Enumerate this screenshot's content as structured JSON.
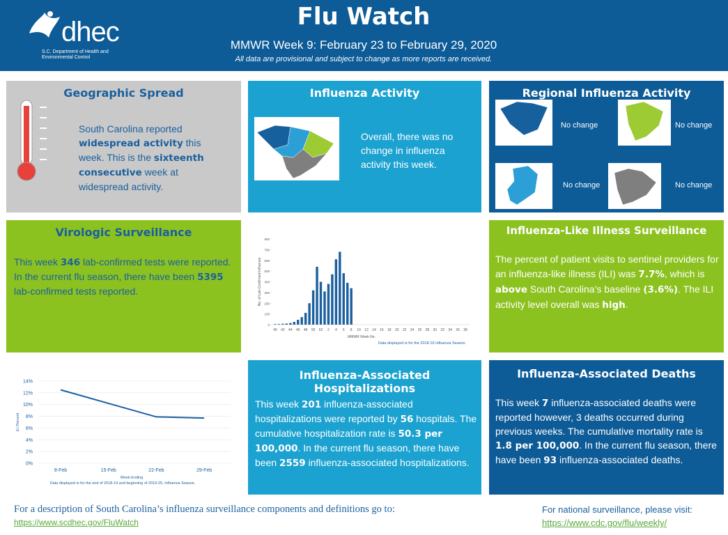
{
  "header": {
    "logo": "dhec",
    "logo_subtitle": "S.C. Department of Health and Environmental Control",
    "title": "Flu Watch",
    "subtitle": "MMWR Week 9: February 23 to February 29, 2020",
    "note": "All data are provisional and subject to change as more reports are received."
  },
  "geographic_spread": {
    "title": "Geographic Spread",
    "text": [
      {
        "text": "South Carolina reported "
      },
      {
        "text": "widespread activity",
        "bold": true
      },
      {
        "text": " this week. This is the "
      },
      {
        "text": "sixteenth consecutive",
        "bold": true
      },
      {
        "text": " week at widespread activity."
      }
    ]
  },
  "influenza_activity": {
    "title": "Influenza Activity",
    "text": [
      {
        "text": "Overall, there was no change in influenza activity this week."
      }
    ]
  },
  "regional_activity": {
    "title": "Regional Influenza Activity",
    "regions": [
      {
        "status": "No change",
        "color": "#17609e"
      },
      {
        "status": "No change",
        "color": "#9ccb34"
      },
      {
        "status": "No change",
        "color": "#2b9fd6"
      },
      {
        "status": "No change",
        "color": "#7f7f7f"
      }
    ]
  },
  "virologic_surveillance": {
    "title": "Virologic Surveillance",
    "text": [
      {
        "text": "This week "
      },
      {
        "text": "346",
        "bold": true
      },
      {
        "text": " lab-confirmed tests were reported.  In the current flu season, there have been "
      },
      {
        "text": "5395",
        "bold": true
      },
      {
        "text": " lab-confirmed tests reported."
      }
    ]
  },
  "ili_surveillance": {
    "title": "Influenza-Like Illness Surveillance",
    "text": [
      {
        "text": "The percent of patient visits to sentinel providers for an influenza-like illness (ILI) was "
      },
      {
        "text": "7.7%",
        "bold": true
      },
      {
        "text": ", which is "
      },
      {
        "text": "above",
        "bold": true
      },
      {
        "text": " South Carolina’s baseline "
      },
      {
        "text": "(3.6%)",
        "bold": true
      },
      {
        "text": ". The ILI activity level overall was "
      },
      {
        "text": "high",
        "bold": true
      },
      {
        "text": "."
      }
    ]
  },
  "hospitalizations": {
    "title": "Influenza-Associated Hospitalizations",
    "text": [
      {
        "text": "This week "
      },
      {
        "text": "201",
        "bold": true
      },
      {
        "text": " influenza-associated hospitalizations were reported by "
      },
      {
        "text": "56",
        "bold": true
      },
      {
        "text": " hospitals. The cumulative hospitalization rate is "
      },
      {
        "text": "50.3 per 100,000",
        "bold": true
      },
      {
        "text": ". In the current flu season, there have been "
      },
      {
        "text": "2559",
        "bold": true
      },
      {
        "text": " influenza-associated hospitalizations."
      }
    ]
  },
  "deaths": {
    "title": "Influenza-Associated Deaths",
    "text": [
      {
        "text": "This week "
      },
      {
        "text": "7",
        "bold": true
      },
      {
        "text": " influenza-associated deaths were reported however, 3 deaths occurred during previous weeks. The cumulative mortality rate is "
      },
      {
        "text": "1.8 per 100,000",
        "bold": true
      },
      {
        "text": ". In the current flu season, there have been "
      },
      {
        "text": "93",
        "bold": true
      },
      {
        "text": " influenza-associated deaths."
      }
    ]
  },
  "footer": {
    "left_text": "For a description of South Carolina’s influenza surveillance components and definitions go to: ",
    "left_link": "https://www.scdhec.gov/FluWatch",
    "right_text": "For national surveillance, please visit:",
    "right_link": "https://www.cdc.gov/flu/weekly/"
  },
  "chart_data": [
    {
      "type": "bar",
      "ylabel": "No. of Lab-Confirmed Influenza",
      "xlabel": "MMWR Week No.",
      "note": "Data displayed is for the 2018-19 Influenza Season.",
      "color": "#1a5f9e",
      "categories": [
        "40",
        null,
        "42",
        null,
        "44",
        null,
        "46",
        null,
        "48",
        null,
        "50",
        null,
        "52",
        null,
        "2",
        null,
        "4",
        null,
        "6",
        null,
        "8",
        null,
        "10",
        null,
        "12",
        null,
        "14",
        null,
        "16",
        null,
        "18",
        null,
        "20",
        null,
        "22",
        null,
        "24",
        null,
        "26",
        null,
        "28",
        null,
        "30",
        null,
        "32",
        null,
        "34",
        null,
        "36",
        null,
        "38"
      ],
      "values": [
        5,
        5,
        8,
        10,
        15,
        25,
        45,
        70,
        110,
        200,
        320,
        540,
        400,
        310,
        380,
        470,
        610,
        680,
        480,
        390,
        340,
        null,
        null,
        null,
        null,
        null,
        null,
        null,
        null,
        null,
        null,
        null,
        null,
        null,
        null,
        null,
        null,
        null,
        null,
        null,
        null,
        null,
        null,
        null,
        null,
        null,
        null,
        null,
        null,
        null,
        null
      ],
      "ylim": [
        0,
        800
      ],
      "yticks": [
        0,
        100,
        200,
        300,
        400,
        500,
        600,
        700,
        800
      ],
      "grid": false
    },
    {
      "type": "line",
      "ylabel": "ILI Percent",
      "xlabel": "Week Ending",
      "note": "Data displayed is for the end of 2018-19 and beginning of 2019-20, Influenza Season.",
      "color": "#1a5f9e",
      "categories": [
        "8-Feb",
        "15-Feb",
        "22-Feb",
        "29-Feb"
      ],
      "values": [
        12.5,
        10.2,
        7.9,
        7.7
      ],
      "ylim": [
        0,
        14
      ],
      "yticks": [
        {
          "value": 0,
          "label": "0%"
        },
        {
          "value": 2,
          "label": "2%"
        },
        {
          "value": 4,
          "label": "4%"
        },
        {
          "value": 6,
          "label": "6%"
        },
        {
          "value": 8,
          "label": "8%"
        },
        {
          "value": 10,
          "label": "10%"
        },
        {
          "value": 12,
          "label": "12%"
        },
        {
          "value": 14,
          "label": "14%"
        }
      ],
      "grid": true
    }
  ]
}
